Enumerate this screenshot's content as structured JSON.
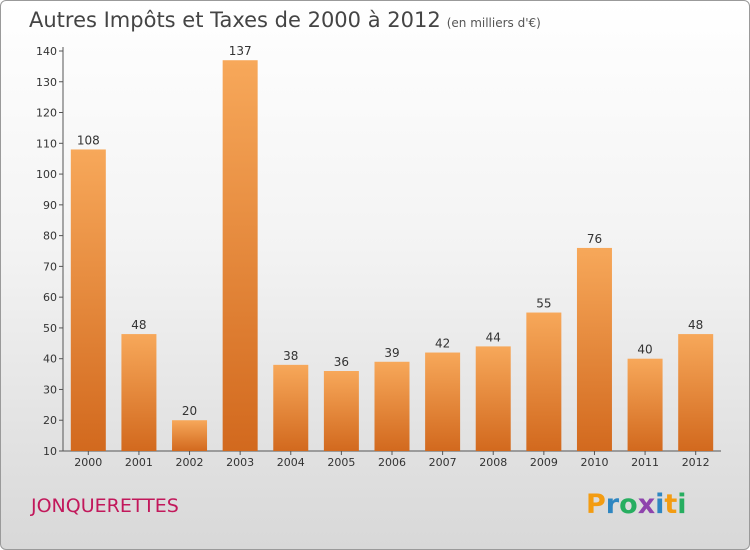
{
  "header": {
    "title": "Autres Impôts et Taxes de 2000 à 2012",
    "subtitle": "(en milliers d'€)"
  },
  "footer": {
    "commune": "JONQUERETTES",
    "brand_letters": [
      "P",
      "r",
      "o",
      "x",
      "i",
      "t",
      "i"
    ],
    "brand_colors": [
      "#f39c12",
      "#2e86c1",
      "#27ae60",
      "#8e44ad",
      "#2e86c1",
      "#f39c12",
      "#27ae60"
    ]
  },
  "colors": {
    "bar_top": "#f7a85a",
    "bar_bottom": "#d2691e",
    "commune": "#c2185b"
  },
  "chart_data": {
    "type": "bar",
    "title": "Autres Impôts et Taxes de 2000 à 2012",
    "subtitle": "(en milliers d'€)",
    "categories": [
      "2000",
      "2001",
      "2002",
      "2003",
      "2004",
      "2005",
      "2006",
      "2007",
      "2008",
      "2009",
      "2010",
      "2011",
      "2012"
    ],
    "values": [
      108,
      48,
      20,
      137,
      38,
      36,
      39,
      42,
      44,
      55,
      76,
      40,
      48
    ],
    "ylim": [
      10,
      140
    ],
    "yticks": [
      10,
      20,
      30,
      40,
      50,
      60,
      70,
      80,
      90,
      100,
      110,
      120,
      130,
      140
    ],
    "grid": false,
    "data_labels": true
  }
}
